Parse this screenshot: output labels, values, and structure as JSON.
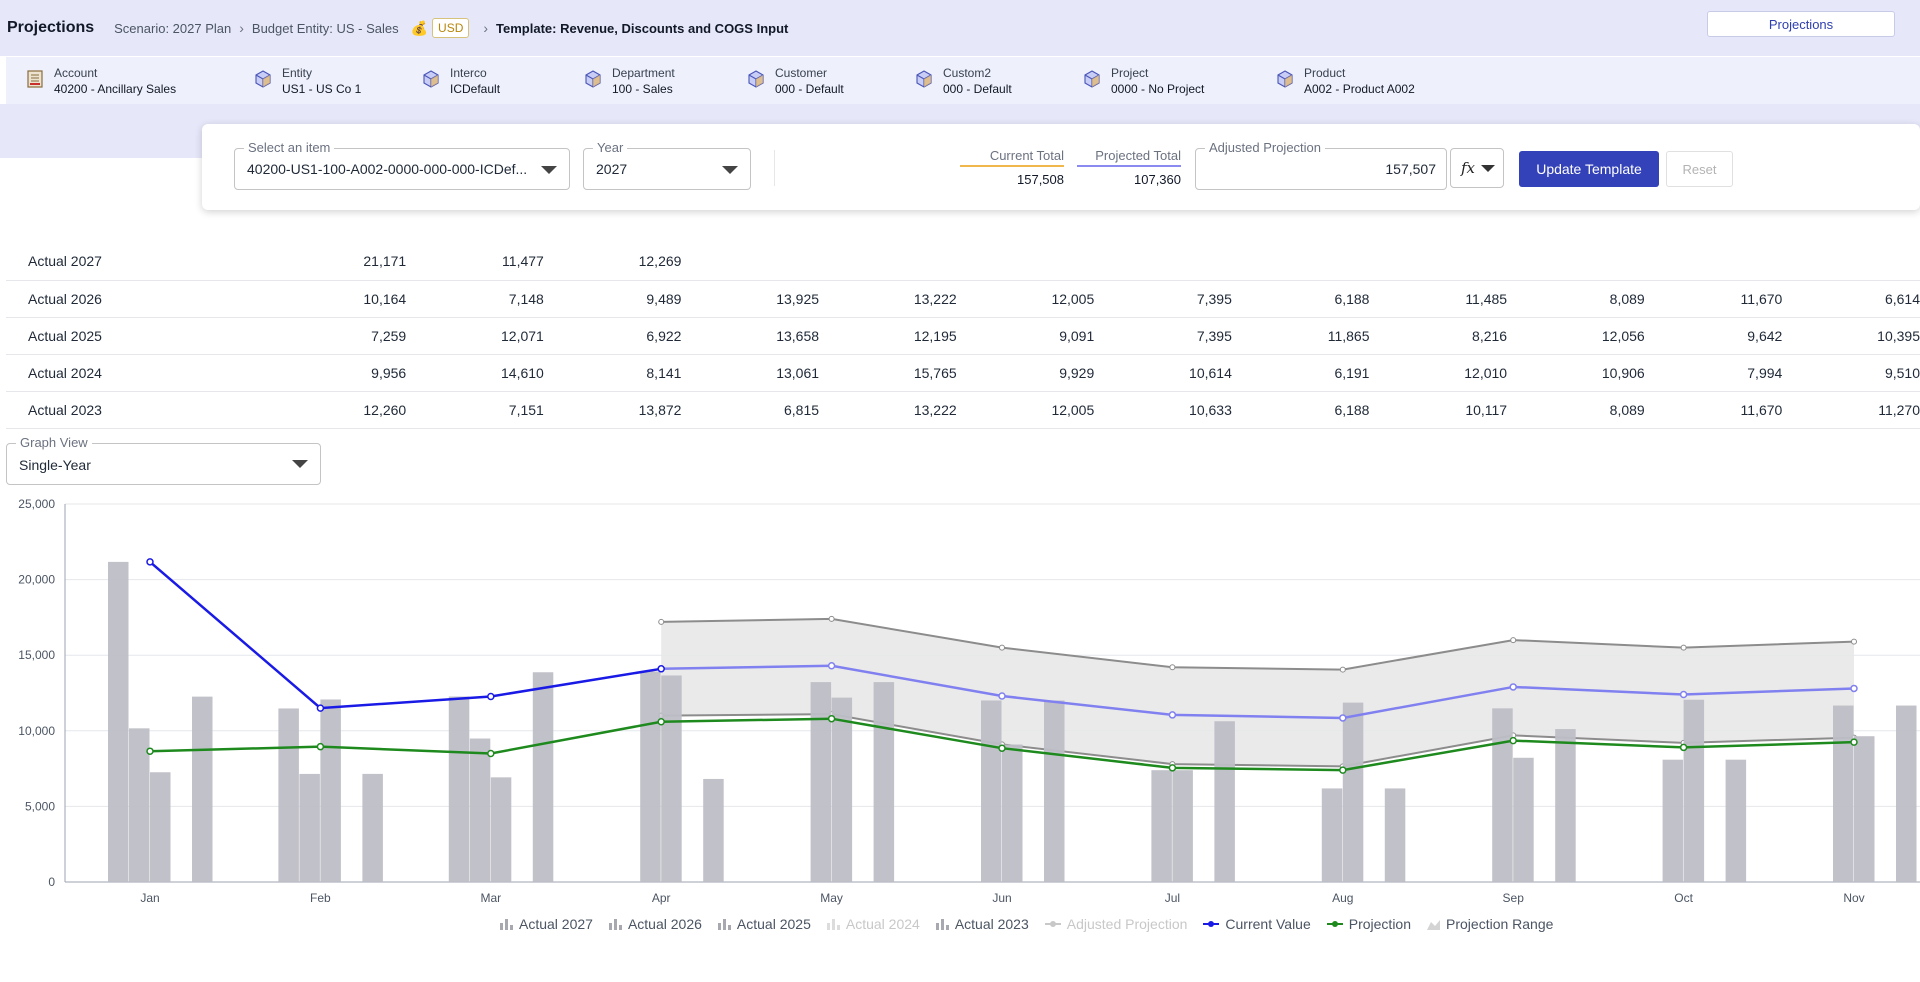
{
  "header": {
    "title": "Projections",
    "scenario": "Scenario: 2027 Plan",
    "budget_entity": "Budget Entity: US - Sales",
    "currency": "USD",
    "template": "Template: Revenue, Discounts and COGS Input",
    "tab_label": "Projections"
  },
  "dimensions": [
    {
      "label": "Account",
      "value": "40200 - Ancillary Sales",
      "icon": "ledger-icon"
    },
    {
      "label": "Entity",
      "value": "US1 - US Co 1",
      "icon": "cube-icon"
    },
    {
      "label": "Interco",
      "value": "ICDefault",
      "icon": "cube-icon"
    },
    {
      "label": "Department",
      "value": "100 - Sales",
      "icon": "cube-icon"
    },
    {
      "label": "Customer",
      "value": "000 - Default",
      "icon": "cube-icon"
    },
    {
      "label": "Custom2",
      "value": "000 - Default",
      "icon": "cube-icon"
    },
    {
      "label": "Project",
      "value": "0000 - No Project",
      "icon": "cube-icon"
    },
    {
      "label": "Product",
      "value": "A002 - Product A002",
      "icon": "cube-icon"
    }
  ],
  "controls": {
    "item_label": "Select an item",
    "item_value": "40200-US1-100-A002-0000-000-000-ICDef...",
    "year_label": "Year",
    "year_value": "2027",
    "current_total_label": "Current Total",
    "current_total": "157,508",
    "projected_total_label": "Projected Total",
    "projected_total": "107,360",
    "adjusted_label": "Adjusted Projection",
    "adjusted_value": "157,507",
    "fx_symbol": "fx",
    "update_button": "Update Template",
    "reset_button": "Reset"
  },
  "table": {
    "rows": [
      {
        "label": "Actual 2027",
        "values": [
          "21,171",
          "11,477",
          "12,269",
          "",
          "",
          "",
          "",
          "",
          "",
          "",
          "",
          ""
        ]
      },
      {
        "label": "Actual 2026",
        "values": [
          "10,164",
          "7,148",
          "9,489",
          "13,925",
          "13,222",
          "12,005",
          "7,395",
          "6,188",
          "11,485",
          "8,089",
          "11,670",
          "6,614"
        ]
      },
      {
        "label": "Actual 2025",
        "values": [
          "7,259",
          "12,071",
          "6,922",
          "13,658",
          "12,195",
          "9,091",
          "7,395",
          "11,865",
          "8,216",
          "12,056",
          "9,642",
          "10,395"
        ]
      },
      {
        "label": "Actual 2024",
        "values": [
          "9,956",
          "14,610",
          "8,141",
          "13,061",
          "15,765",
          "9,929",
          "10,614",
          "6,191",
          "12,010",
          "10,906",
          "7,994",
          "9,510"
        ]
      },
      {
        "label": "Actual 2023",
        "values": [
          "12,260",
          "7,151",
          "13,872",
          "6,815",
          "13,222",
          "12,005",
          "10,633",
          "6,188",
          "10,117",
          "8,089",
          "11,670",
          "11,270"
        ]
      }
    ]
  },
  "graph_view": {
    "label": "Graph View",
    "value": "Single-Year"
  },
  "chart_data": {
    "type": "bar",
    "categories": [
      "Jan",
      "Feb",
      "Mar",
      "Apr",
      "May",
      "Jun",
      "Jul",
      "Aug",
      "Sep",
      "Oct",
      "Nov"
    ],
    "ylim": [
      0,
      25000
    ],
    "yticks": [
      "0",
      "5,000",
      "10,000",
      "15,000",
      "20,000",
      "25,000"
    ],
    "grid": true,
    "series": [
      {
        "name": "Actual 2027",
        "kind": "bar",
        "values": [
          21171,
          11477,
          12269,
          null,
          null,
          null,
          null,
          null,
          null,
          null,
          null
        ],
        "color": "#bebec6"
      },
      {
        "name": "Actual 2026",
        "kind": "bar",
        "values": [
          10164,
          7148,
          9489,
          13925,
          13222,
          12005,
          7395,
          6188,
          11485,
          8089,
          11670
        ],
        "color": "#bebec6"
      },
      {
        "name": "Actual 2025",
        "kind": "bar",
        "values": [
          7259,
          12071,
          6922,
          13658,
          12195,
          9091,
          7395,
          11865,
          8216,
          12056,
          9642
        ],
        "color": "#bebec6"
      },
      {
        "name": "Actual 2024",
        "kind": "bar",
        "hidden": true,
        "values": [
          9956,
          14610,
          8141,
          13061,
          15765,
          9929,
          10614,
          6191,
          12010,
          10906,
          7994
        ],
        "color": "#bebec6"
      },
      {
        "name": "Actual 2023",
        "kind": "bar",
        "values": [
          12260,
          7151,
          13872,
          6815,
          13222,
          12005,
          10633,
          6188,
          10117,
          8089,
          11670
        ],
        "color": "#bebec6"
      },
      {
        "name": "Current Value",
        "kind": "line",
        "values": [
          21171,
          11500,
          12269,
          14100,
          14300,
          12300,
          11050,
          10850,
          12900,
          12400,
          12800
        ],
        "color": "#1a1ae6",
        "projected_from_index": 3,
        "projected_color": "#8080f0"
      },
      {
        "name": "Projection",
        "kind": "line",
        "values": [
          8650,
          8950,
          8500,
          10600,
          10800,
          8850,
          7550,
          7400,
          9350,
          8900,
          9250
        ],
        "color": "#1e8a1e"
      }
    ],
    "projection_range": {
      "name": "Projection Range",
      "start_index": 3,
      "upper": [
        17200,
        17400,
        15500,
        14200,
        14050,
        16000,
        15500,
        15900
      ],
      "lower": [
        11000,
        11100,
        9100,
        7800,
        7650,
        9700,
        9200,
        9550
      ]
    },
    "legend": [
      "Actual 2027",
      "Actual 2026",
      "Actual 2025",
      "Actual 2024",
      "Actual 2023",
      "Adjusted Projection",
      "Current Value",
      "Projection",
      "Projection Range"
    ],
    "legend_hidden": [
      "Actual 2024",
      "Adjusted Projection"
    ],
    "legend_position": "bottom"
  }
}
